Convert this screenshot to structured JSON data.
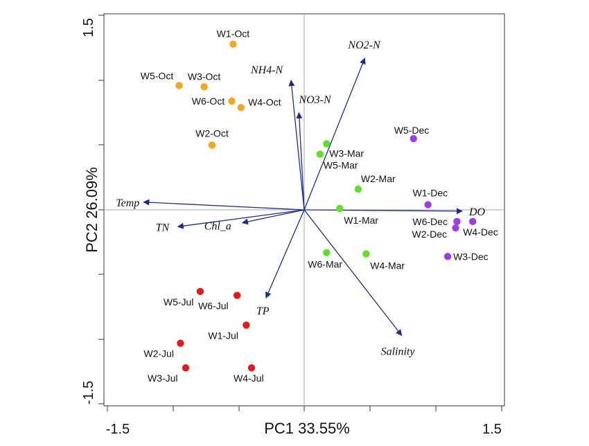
{
  "chart_data": {
    "type": "scatter",
    "xlabel": "PC1 33.55%",
    "ylabel": "PC2 26.09%",
    "xlim": [
      -1.5,
      1.5
    ],
    "ylim": [
      -1.5,
      1.5
    ],
    "x_ticks": [
      "-1.5",
      "1.5"
    ],
    "y_ticks": [
      "1.5",
      "-1.5"
    ],
    "reference_lines": {
      "x": 0,
      "y": 0
    },
    "point_colors": {
      "Oct": "#f2a81d",
      "Mar": "#5ee02a",
      "Dec": "#9b3ee8",
      "Jul": "#e51b1b"
    },
    "vector_color": "#1f2a8c",
    "points": [
      {
        "label": "W1-Oct",
        "x": -0.54,
        "y": 1.28,
        "group": "Oct"
      },
      {
        "label": "W5-Oct",
        "x": -0.95,
        "y": 0.96,
        "group": "Oct"
      },
      {
        "label": "W3-Oct",
        "x": -0.76,
        "y": 0.95,
        "group": "Oct"
      },
      {
        "label": "W6-Oct",
        "x": -0.55,
        "y": 0.84,
        "group": "Oct"
      },
      {
        "label": "W4-Oct",
        "x": -0.48,
        "y": 0.79,
        "group": "Oct"
      },
      {
        "label": "W2-Oct",
        "x": -0.7,
        "y": 0.5,
        "group": "Oct"
      },
      {
        "label": "W3-Mar",
        "x": 0.17,
        "y": 0.51,
        "group": "Mar"
      },
      {
        "label": "W5-Mar",
        "x": 0.12,
        "y": 0.43,
        "group": "Mar"
      },
      {
        "label": "W2-Mar",
        "x": 0.41,
        "y": 0.16,
        "group": "Mar"
      },
      {
        "label": "W1-Mar",
        "x": 0.27,
        "y": 0.01,
        "group": "Mar"
      },
      {
        "label": "W6-Mar",
        "x": 0.17,
        "y": -0.33,
        "group": "Mar"
      },
      {
        "label": "W4-Mar",
        "x": 0.47,
        "y": -0.34,
        "group": "Mar"
      },
      {
        "label": "W5-Dec",
        "x": 0.83,
        "y": 0.55,
        "group": "Dec"
      },
      {
        "label": "W1-Dec",
        "x": 0.94,
        "y": 0.04,
        "group": "Dec"
      },
      {
        "label": "W6-Dec",
        "x": 1.16,
        "y": -0.09,
        "group": "Dec"
      },
      {
        "label": "W4-Dec",
        "x": 1.28,
        "y": -0.09,
        "group": "Dec"
      },
      {
        "label": "W2-Dec",
        "x": 1.15,
        "y": -0.14,
        "group": "Dec"
      },
      {
        "label": "W3-Dec",
        "x": 1.09,
        "y": -0.36,
        "group": "Dec"
      },
      {
        "label": "W5-Jul",
        "x": -0.79,
        "y": -0.63,
        "group": "Jul"
      },
      {
        "label": "W6-Jul",
        "x": -0.51,
        "y": -0.66,
        "group": "Jul"
      },
      {
        "label": "W1-Jul",
        "x": -0.44,
        "y": -0.89,
        "group": "Jul"
      },
      {
        "label": "W2-Jul",
        "x": -0.94,
        "y": -1.03,
        "group": "Jul"
      },
      {
        "label": "W3-Jul",
        "x": -0.9,
        "y": -1.22,
        "group": "Jul"
      },
      {
        "label": "W4-Jul",
        "x": -0.4,
        "y": -1.22,
        "group": "Jul"
      }
    ],
    "vectors": [
      {
        "label": "NO2-N",
        "x": 0.46,
        "y": 1.17
      },
      {
        "label": "NH4-N",
        "x": -0.1,
        "y": 1.0
      },
      {
        "label": "NO3-N",
        "x": -0.04,
        "y": 0.75
      },
      {
        "label": "Temp",
        "x": -1.22,
        "y": 0.06
      },
      {
        "label": "TN",
        "x": -0.96,
        "y": -0.13
      },
      {
        "label": "Chl_a",
        "x": -0.47,
        "y": -0.1
      },
      {
        "label": "TP",
        "x": -0.29,
        "y": -0.68
      },
      {
        "label": "DO",
        "x": 1.2,
        "y": -0.01
      },
      {
        "label": "Salinity",
        "x": 0.74,
        "y": -0.97
      }
    ]
  }
}
